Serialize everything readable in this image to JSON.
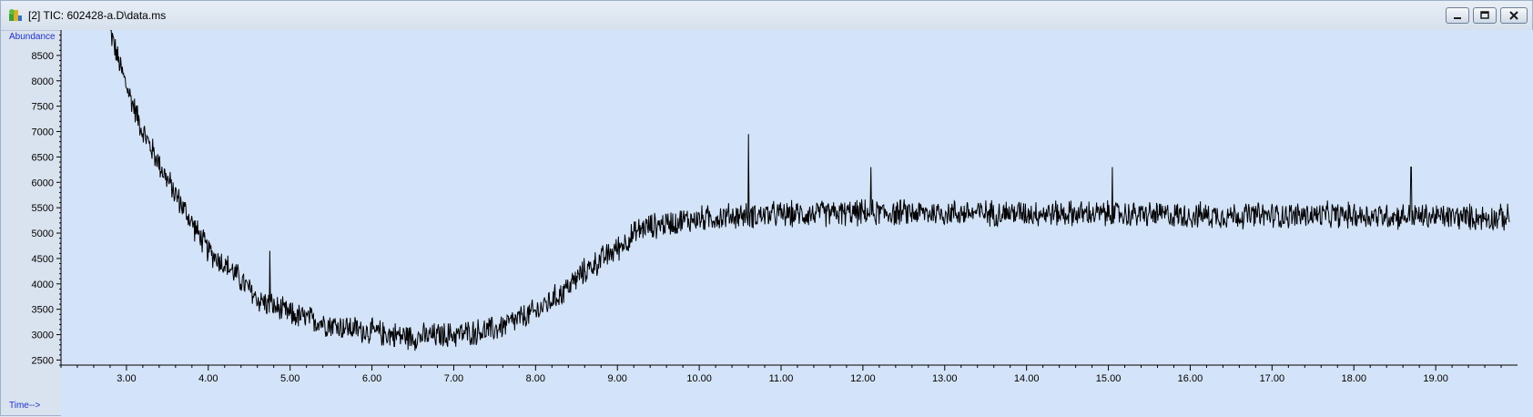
{
  "window": {
    "title": "[2] TIC: 602428-a.D\\data.ms",
    "icon": "chromatogram-app-icon",
    "buttons": [
      "minimize",
      "restore",
      "close"
    ]
  },
  "colors": {
    "plot_background": "#d3e3f9",
    "trace": "#000000",
    "axis_label": "#1e2fd6",
    "axis": "#000000"
  },
  "chart_data": {
    "type": "line",
    "title": "",
    "xlabel": "Time-->",
    "ylabel": "Abundance",
    "xlim": [
      2.2,
      20.0
    ],
    "ylim": [
      2400,
      9000
    ],
    "xticks": [
      "3.00",
      "4.00",
      "5.00",
      "6.00",
      "7.00",
      "8.00",
      "9.00",
      "10.00",
      "11.00",
      "12.00",
      "13.00",
      "14.00",
      "15.00",
      "16.00",
      "17.00",
      "18.00",
      "19.00"
    ],
    "yticks": [
      "2500",
      "3000",
      "3500",
      "4000",
      "4500",
      "5000",
      "5500",
      "6000",
      "6500",
      "7000",
      "7500",
      "8000",
      "8500"
    ],
    "x_minor_step": 0.2,
    "grid": false,
    "baseline_points": [
      {
        "x": 2.8,
        "y": 9000
      },
      {
        "x": 2.9,
        "y": 8400
      },
      {
        "x": 3.0,
        "y": 7900
      },
      {
        "x": 3.2,
        "y": 7000
      },
      {
        "x": 3.5,
        "y": 6050
      },
      {
        "x": 3.8,
        "y": 5200
      },
      {
        "x": 4.0,
        "y": 4650
      },
      {
        "x": 4.3,
        "y": 4250
      },
      {
        "x": 4.6,
        "y": 3700
      },
      {
        "x": 5.0,
        "y": 3400
      },
      {
        "x": 5.5,
        "y": 3200
      },
      {
        "x": 6.0,
        "y": 3050
      },
      {
        "x": 6.5,
        "y": 2950
      },
      {
        "x": 7.0,
        "y": 3000
      },
      {
        "x": 7.5,
        "y": 3100
      },
      {
        "x": 8.0,
        "y": 3450
      },
      {
        "x": 8.3,
        "y": 3800
      },
      {
        "x": 8.6,
        "y": 4250
      },
      {
        "x": 9.0,
        "y": 4700
      },
      {
        "x": 9.3,
        "y": 5100
      },
      {
        "x": 9.8,
        "y": 5250
      },
      {
        "x": 10.5,
        "y": 5350
      },
      {
        "x": 12.0,
        "y": 5400
      },
      {
        "x": 14.0,
        "y": 5400
      },
      {
        "x": 16.0,
        "y": 5350
      },
      {
        "x": 18.0,
        "y": 5350
      },
      {
        "x": 19.9,
        "y": 5300
      }
    ],
    "noise_amplitude": 300,
    "spikes": [
      {
        "x": 4.75,
        "y": 4650
      },
      {
        "x": 10.6,
        "y": 6950
      },
      {
        "x": 12.1,
        "y": 6300
      },
      {
        "x": 15.05,
        "y": 6300
      },
      {
        "x": 18.7,
        "y": 6300
      }
    ]
  }
}
